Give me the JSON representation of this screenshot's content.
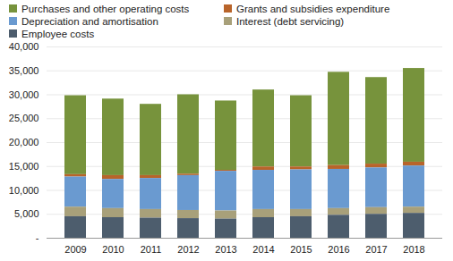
{
  "chart_data": {
    "type": "bar",
    "stacked": true,
    "legend": "top",
    "grid": true,
    "categories": [
      "2009",
      "2010",
      "2011",
      "2012",
      "2013",
      "2014",
      "2015",
      "2016",
      "2017",
      "2018"
    ],
    "series": [
      {
        "name": "Purchases and other operating costs",
        "color": "#77933c",
        "values": [
          16500,
          16000,
          14900,
          16600,
          14500,
          16100,
          14900,
          19500,
          18100,
          19600
        ]
      },
      {
        "name": "Grants and subsidies expenditure",
        "color": "#b8642a",
        "values": [
          500,
          800,
          600,
          300,
          200,
          700,
          600,
          800,
          800,
          800
        ]
      },
      {
        "name": "Depreciation and amortisation",
        "color": "#6a9ad0",
        "values": [
          6300,
          6100,
          6500,
          7300,
          8300,
          8200,
          8300,
          8200,
          8300,
          8600
        ]
      },
      {
        "name": "Interest (debt servicing)",
        "color": "#a8a07a",
        "values": [
          2000,
          1900,
          1800,
          1700,
          1700,
          1700,
          1500,
          1400,
          1400,
          1300
        ]
      },
      {
        "name": "Employee costs",
        "color": "#4d5d6d",
        "values": [
          4500,
          4300,
          4200,
          4100,
          4000,
          4300,
          4500,
          4800,
          5000,
          5200
        ]
      }
    ],
    "ylim": [
      0,
      40000
    ],
    "yticks": [
      {
        "value": 0,
        "label": "-"
      },
      {
        "value": 5000,
        "label": "5,000"
      },
      {
        "value": 10000,
        "label": "10,000"
      },
      {
        "value": 15000,
        "label": "15,000"
      },
      {
        "value": 20000,
        "label": "20,000"
      },
      {
        "value": 25000,
        "label": "25,000"
      },
      {
        "value": 30000,
        "label": "30,000"
      },
      {
        "value": 35000,
        "label": "35,000"
      },
      {
        "value": 40000,
        "label": "40,000"
      }
    ]
  }
}
